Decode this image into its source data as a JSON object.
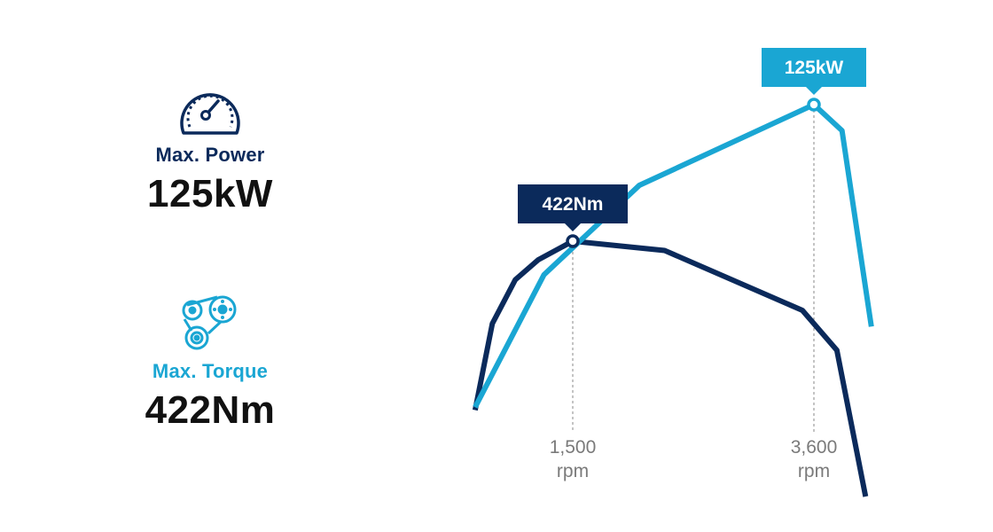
{
  "stats": {
    "power": {
      "label": "Max. Power",
      "value": "125kW",
      "icon": "speedometer-icon",
      "color": "#0b2a5b"
    },
    "torque": {
      "label": "Max. Torque",
      "value": "422Nm",
      "icon": "gears-icon",
      "color": "#1aa6d3"
    }
  },
  "chart_data": {
    "type": "line",
    "xlabel": "",
    "ylabel": "",
    "x_ticks": [
      {
        "value": 1500,
        "label": "1,500",
        "unit": "rpm"
      },
      {
        "value": 3600,
        "label": "3,600",
        "unit": "rpm"
      }
    ],
    "grid": false,
    "series": [
      {
        "color": "#0b2a5b",
        "x": [
          650,
          800,
          1000,
          1200,
          1500,
          2300,
          3500,
          3800,
          4050
        ],
        "y": [
          295,
          360,
          393,
          408,
          422,
          415,
          370,
          340,
          230
        ],
        "peak": {
          "x": 1500,
          "y": 422,
          "label": "422Nm"
        }
      },
      {
        "color": "#1aa6d3",
        "x": [
          650,
          1250,
          2080,
          3600,
          3845,
          4100
        ],
        "y": [
          20,
          66,
          97,
          125,
          116,
          48
        ],
        "peak": {
          "x": 3600,
          "y": 125,
          "label": "125kW"
        }
      }
    ]
  }
}
